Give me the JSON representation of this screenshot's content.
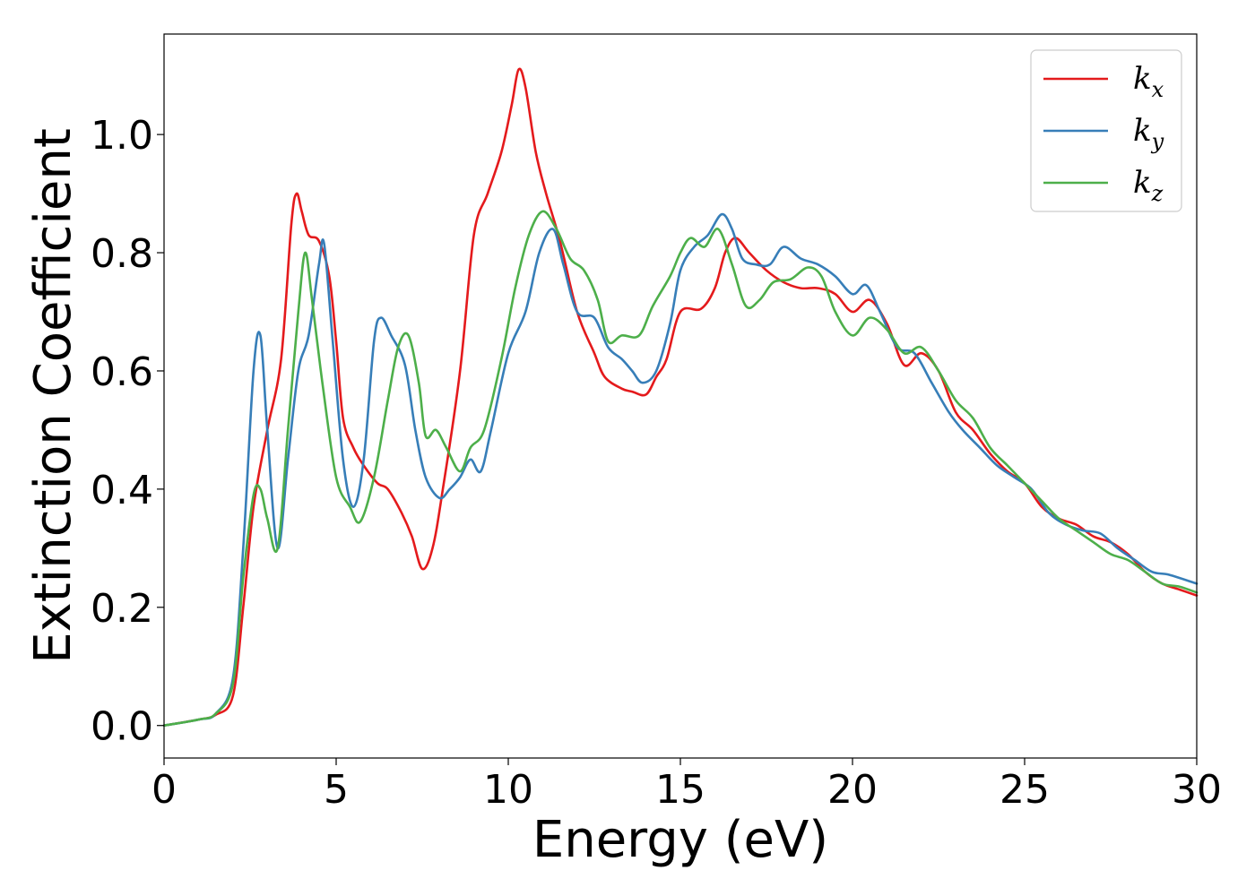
{
  "chart_data": {
    "type": "line",
    "title": "",
    "xlabel": "Energy (eV)",
    "ylabel": "Extinction Coefficient",
    "xlim": [
      0,
      30
    ],
    "ylim": [
      -0.055,
      1.17
    ],
    "x_ticks": [
      "0",
      "5",
      "10",
      "15",
      "20",
      "25",
      "30"
    ],
    "y_ticks": [
      "0.0",
      "0.2",
      "0.4",
      "0.6",
      "0.8",
      "1.0"
    ],
    "grid": false,
    "legend_position": "top-right",
    "series": [
      {
        "name": "k",
        "subscript": "x",
        "color": "#e41a1c",
        "points": [
          [
            0,
            0
          ],
          [
            1,
            0.01
          ],
          [
            1.5,
            0.018
          ],
          [
            2.0,
            0.05
          ],
          [
            2.3,
            0.2
          ],
          [
            2.6,
            0.37
          ],
          [
            3.0,
            0.5
          ],
          [
            3.4,
            0.62
          ],
          [
            3.7,
            0.85
          ],
          [
            3.85,
            0.9
          ],
          [
            4.0,
            0.87
          ],
          [
            4.2,
            0.83
          ],
          [
            4.5,
            0.82
          ],
          [
            4.8,
            0.76
          ],
          [
            5.0,
            0.65
          ],
          [
            5.2,
            0.52
          ],
          [
            5.5,
            0.47
          ],
          [
            5.8,
            0.44
          ],
          [
            6.2,
            0.41
          ],
          [
            6.5,
            0.4
          ],
          [
            6.9,
            0.36
          ],
          [
            7.2,
            0.32
          ],
          [
            7.5,
            0.265
          ],
          [
            7.8,
            0.3
          ],
          [
            8.1,
            0.4
          ],
          [
            8.6,
            0.6
          ],
          [
            9.0,
            0.83
          ],
          [
            9.4,
            0.9
          ],
          [
            9.8,
            0.97
          ],
          [
            10.1,
            1.05
          ],
          [
            10.3,
            1.11
          ],
          [
            10.5,
            1.08
          ],
          [
            10.8,
            0.97
          ],
          [
            11.1,
            0.9
          ],
          [
            11.5,
            0.82
          ],
          [
            12.0,
            0.7
          ],
          [
            12.5,
            0.63
          ],
          [
            12.8,
            0.59
          ],
          [
            13.3,
            0.57
          ],
          [
            13.6,
            0.565
          ],
          [
            14.0,
            0.56
          ],
          [
            14.3,
            0.59
          ],
          [
            14.6,
            0.62
          ],
          [
            15.0,
            0.7
          ],
          [
            15.6,
            0.705
          ],
          [
            16.0,
            0.74
          ],
          [
            16.3,
            0.8
          ],
          [
            16.6,
            0.825
          ],
          [
            17.0,
            0.8
          ],
          [
            17.5,
            0.77
          ],
          [
            18.0,
            0.75
          ],
          [
            18.5,
            0.74
          ],
          [
            19.0,
            0.74
          ],
          [
            19.5,
            0.73
          ],
          [
            20.0,
            0.7
          ],
          [
            20.5,
            0.72
          ],
          [
            21.0,
            0.68
          ],
          [
            21.5,
            0.61
          ],
          [
            22.0,
            0.63
          ],
          [
            22.5,
            0.6
          ],
          [
            23.0,
            0.53
          ],
          [
            23.5,
            0.5
          ],
          [
            24.0,
            0.46
          ],
          [
            24.5,
            0.43
          ],
          [
            25.0,
            0.41
          ],
          [
            25.5,
            0.37
          ],
          [
            26.0,
            0.35
          ],
          [
            26.5,
            0.34
          ],
          [
            27.0,
            0.32
          ],
          [
            27.5,
            0.31
          ],
          [
            28.0,
            0.29
          ],
          [
            28.5,
            0.26
          ],
          [
            29.0,
            0.24
          ],
          [
            29.5,
            0.23
          ],
          [
            30.0,
            0.22
          ]
        ]
      },
      {
        "name": "k",
        "subscript": "y",
        "color": "#377eb8",
        "points": [
          [
            0,
            0
          ],
          [
            1,
            0.01
          ],
          [
            1.5,
            0.02
          ],
          [
            2.0,
            0.08
          ],
          [
            2.3,
            0.3
          ],
          [
            2.6,
            0.6
          ],
          [
            2.8,
            0.66
          ],
          [
            3.0,
            0.5
          ],
          [
            3.3,
            0.3
          ],
          [
            3.6,
            0.45
          ],
          [
            3.9,
            0.6
          ],
          [
            4.2,
            0.66
          ],
          [
            4.5,
            0.78
          ],
          [
            4.65,
            0.815
          ],
          [
            4.9,
            0.65
          ],
          [
            5.2,
            0.45
          ],
          [
            5.5,
            0.37
          ],
          [
            5.8,
            0.45
          ],
          [
            6.1,
            0.65
          ],
          [
            6.3,
            0.69
          ],
          [
            6.6,
            0.66
          ],
          [
            7.0,
            0.61
          ],
          [
            7.3,
            0.5
          ],
          [
            7.6,
            0.42
          ],
          [
            8.0,
            0.385
          ],
          [
            8.3,
            0.4
          ],
          [
            8.6,
            0.42
          ],
          [
            8.9,
            0.45
          ],
          [
            9.2,
            0.43
          ],
          [
            9.5,
            0.5
          ],
          [
            10.0,
            0.63
          ],
          [
            10.5,
            0.7
          ],
          [
            10.9,
            0.8
          ],
          [
            11.3,
            0.84
          ],
          [
            11.6,
            0.78
          ],
          [
            12.0,
            0.7
          ],
          [
            12.5,
            0.69
          ],
          [
            12.9,
            0.64
          ],
          [
            13.3,
            0.62
          ],
          [
            13.6,
            0.6
          ],
          [
            13.9,
            0.58
          ],
          [
            14.3,
            0.6
          ],
          [
            14.7,
            0.68
          ],
          [
            15.0,
            0.77
          ],
          [
            15.4,
            0.81
          ],
          [
            15.8,
            0.83
          ],
          [
            16.2,
            0.865
          ],
          [
            16.5,
            0.84
          ],
          [
            16.8,
            0.79
          ],
          [
            17.2,
            0.78
          ],
          [
            17.6,
            0.78
          ],
          [
            18.0,
            0.81
          ],
          [
            18.5,
            0.79
          ],
          [
            19.0,
            0.78
          ],
          [
            19.5,
            0.76
          ],
          [
            20.0,
            0.73
          ],
          [
            20.4,
            0.745
          ],
          [
            20.8,
            0.7
          ],
          [
            21.3,
            0.64
          ],
          [
            21.8,
            0.63
          ],
          [
            22.3,
            0.58
          ],
          [
            22.8,
            0.53
          ],
          [
            23.2,
            0.5
          ],
          [
            23.7,
            0.47
          ],
          [
            24.2,
            0.44
          ],
          [
            24.7,
            0.42
          ],
          [
            25.2,
            0.4
          ],
          [
            25.7,
            0.36
          ],
          [
            26.2,
            0.34
          ],
          [
            26.7,
            0.33
          ],
          [
            27.2,
            0.325
          ],
          [
            27.7,
            0.3
          ],
          [
            28.2,
            0.28
          ],
          [
            28.7,
            0.26
          ],
          [
            29.2,
            0.255
          ],
          [
            30.0,
            0.24
          ]
        ]
      },
      {
        "name": "k",
        "subscript": "z",
        "color": "#4daf4a",
        "points": [
          [
            0,
            0
          ],
          [
            1,
            0.01
          ],
          [
            1.5,
            0.02
          ],
          [
            2.0,
            0.07
          ],
          [
            2.3,
            0.25
          ],
          [
            2.6,
            0.39
          ],
          [
            2.8,
            0.4
          ],
          [
            3.0,
            0.35
          ],
          [
            3.3,
            0.3
          ],
          [
            3.6,
            0.5
          ],
          [
            3.9,
            0.7
          ],
          [
            4.1,
            0.8
          ],
          [
            4.3,
            0.72
          ],
          [
            4.6,
            0.58
          ],
          [
            5.0,
            0.42
          ],
          [
            5.4,
            0.37
          ],
          [
            5.7,
            0.345
          ],
          [
            6.1,
            0.42
          ],
          [
            6.5,
            0.55
          ],
          [
            6.8,
            0.64
          ],
          [
            7.1,
            0.66
          ],
          [
            7.4,
            0.58
          ],
          [
            7.6,
            0.49
          ],
          [
            7.9,
            0.5
          ],
          [
            8.2,
            0.47
          ],
          [
            8.6,
            0.43
          ],
          [
            8.9,
            0.47
          ],
          [
            9.3,
            0.5
          ],
          [
            9.8,
            0.62
          ],
          [
            10.2,
            0.74
          ],
          [
            10.6,
            0.83
          ],
          [
            11.0,
            0.87
          ],
          [
            11.4,
            0.84
          ],
          [
            11.8,
            0.79
          ],
          [
            12.2,
            0.77
          ],
          [
            12.6,
            0.72
          ],
          [
            12.9,
            0.65
          ],
          [
            13.3,
            0.66
          ],
          [
            13.8,
            0.66
          ],
          [
            14.2,
            0.71
          ],
          [
            14.7,
            0.76
          ],
          [
            15.0,
            0.8
          ],
          [
            15.3,
            0.825
          ],
          [
            15.7,
            0.81
          ],
          [
            16.1,
            0.84
          ],
          [
            16.5,
            0.78
          ],
          [
            16.9,
            0.71
          ],
          [
            17.3,
            0.72
          ],
          [
            17.7,
            0.75
          ],
          [
            18.2,
            0.755
          ],
          [
            18.7,
            0.775
          ],
          [
            19.1,
            0.76
          ],
          [
            19.5,
            0.7
          ],
          [
            20.0,
            0.66
          ],
          [
            20.5,
            0.69
          ],
          [
            21.0,
            0.67
          ],
          [
            21.5,
            0.63
          ],
          [
            22.0,
            0.64
          ],
          [
            22.5,
            0.6
          ],
          [
            23.0,
            0.55
          ],
          [
            23.5,
            0.52
          ],
          [
            24.0,
            0.47
          ],
          [
            24.5,
            0.44
          ],
          [
            25.0,
            0.41
          ],
          [
            25.5,
            0.38
          ],
          [
            26.0,
            0.35
          ],
          [
            26.5,
            0.33
          ],
          [
            27.0,
            0.31
          ],
          [
            27.5,
            0.29
          ],
          [
            28.0,
            0.28
          ],
          [
            28.5,
            0.26
          ],
          [
            29.0,
            0.24
          ],
          [
            29.5,
            0.235
          ],
          [
            30.0,
            0.225
          ]
        ]
      }
    ]
  }
}
